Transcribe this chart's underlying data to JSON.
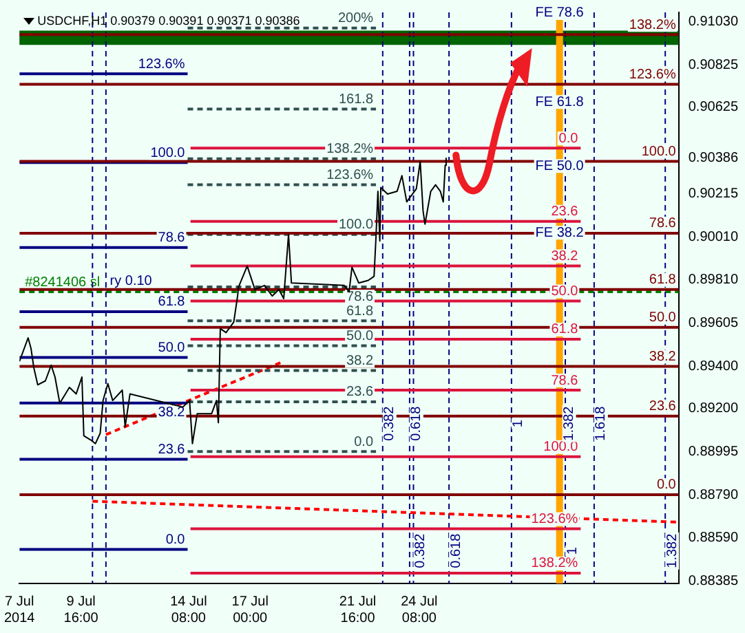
{
  "chart_data": {
    "type": "line",
    "title": "USDCHF,H1 0.90379 0.90391 0.90371 0.90386",
    "marker": "none",
    "legend": false,
    "grid": false,
    "xlim": [
      "2014-07-07T00:00",
      "2014-08-04T14:00"
    ],
    "xticks": [
      {
        "value": "2014-07-07T00:00",
        "label": "7 Jul 2014"
      },
      {
        "value": "2014-07-09T16:00",
        "label": "9 Jul 16:00"
      },
      {
        "value": "2014-07-14T08:00",
        "label": "14 Jul 08:00"
      },
      {
        "value": "2014-07-17T00:00",
        "label": "17 Jul 00:00"
      },
      {
        "value": "2014-07-21T16:00",
        "label": "21 Jul 16:00"
      },
      {
        "value": "2014-07-24T08:00",
        "label": "24 Jul 08:00"
      }
    ],
    "ylim": [
      0.88373,
      0.91073
    ],
    "yticks": [
      {
        "value": 0.9103,
        "label": "0.91030"
      },
      0.90825,
      0.90625,
      0.90386,
      0.90215,
      {
        "value": 0.9001,
        "label": "0.90010"
      },
      {
        "value": 0.8981,
        "label": "0.89810"
      },
      0.89605,
      {
        "value": 0.894,
        "label": "0.89400"
      },
      {
        "value": 0.892,
        "label": "0.89200"
      },
      0.88995,
      {
        "value": 0.8879,
        "label": "0.88790"
      },
      {
        "value": 0.8859,
        "label": "0.88590"
      },
      0.88385
    ],
    "series": [
      {
        "color": "#000000",
        "x": [
          "2014-07-07T00:00",
          "2014-07-07T09:00",
          "2014-07-07T12:00",
          "2014-07-07T15:00",
          "2014-07-07T19:00",
          "2014-07-08T03:00",
          "2014-07-08T09:00",
          "2014-07-08T13:00",
          "2014-07-08T18:00",
          "2014-07-09T04:00",
          "2014-07-09T11:00",
          "2014-07-09T17:00",
          "2014-07-09T19:00",
          "2014-07-10T02:00",
          "2014-07-10T07:00",
          "2014-07-10T12:00",
          "2014-07-10T15:00",
          "2014-07-10T20:00",
          "2014-07-11T01:00",
          "2014-07-11T11:00",
          "2014-07-11T14:00",
          "2014-07-11T19:00",
          "2014-07-14T02:00",
          "2014-07-14T09:00",
          "2014-07-14T12:00",
          "2014-07-14T17:00",
          "2014-07-14T22:00",
          "2014-07-15T08:00",
          "2014-07-15T13:00",
          "2014-07-15T15:00",
          "2014-07-15T17:00",
          "2014-07-15T23:00",
          "2014-07-16T07:00",
          "2014-07-16T11:00",
          "2014-07-16T12:00",
          "2014-07-16T21:00",
          "2014-07-17T05:00",
          "2014-07-17T15:00",
          "2014-07-17T23:00",
          "2014-07-18T06:00",
          "2014-07-18T11:00",
          "2014-07-18T16:00",
          "2014-07-18T19:00",
          "2014-07-21T02:00",
          "2014-07-21T07:00",
          "2014-07-21T10:00",
          "2014-07-21T17:00",
          "2014-07-22T03:00",
          "2014-07-22T09:00",
          "2014-07-22T11:00",
          "2014-07-22T13:00",
          "2014-07-22T15:00",
          "2014-07-22T16:00",
          "2014-07-22T23:00",
          "2014-07-23T09:00",
          "2014-07-23T14:00",
          "2014-07-23T19:00",
          "2014-07-24T05:00",
          "2014-07-24T09:00",
          "2014-07-24T12:00",
          "2014-07-24T14:00",
          "2014-07-24T20:00",
          "2014-07-25T01:00",
          "2014-07-25T06:00",
          "2014-07-25T09:00",
          "2014-07-25T11:00",
          "2014-07-25T12:00"
        ],
        "values": [
          0.89423,
          0.89534,
          0.89485,
          0.89392,
          0.89312,
          0.89331,
          0.89405,
          0.89349,
          0.89225,
          0.893,
          0.89269,
          0.89349,
          0.89071,
          0.89052,
          0.89034,
          0.89083,
          0.89238,
          0.89318,
          0.89238,
          0.89287,
          0.89114,
          0.89269,
          0.89207,
          0.89238,
          0.89034,
          0.89176,
          0.89176,
          0.89176,
          0.89238,
          0.89133,
          0.89578,
          0.89559,
          0.89609,
          0.89732,
          0.89775,
          0.89874,
          0.89763,
          0.89782,
          0.89732,
          0.89763,
          0.8972,
          0.90023,
          0.89794,
          0.89782,
          0.89751,
          0.89868,
          0.89794,
          0.89806,
          0.89825,
          0.9001,
          0.90227,
          0.89992,
          0.90245,
          0.90214,
          0.90227,
          0.90301,
          0.90177,
          0.90239,
          0.90369,
          0.90134,
          0.90072,
          0.90227,
          0.90258,
          0.90227,
          0.90177,
          0.9035,
          0.90386
        ]
      },
      {
        "color": "#800000",
        "x": [
          "2014-07-07T00:00",
          "2014-08-04T14:00"
        ],
        "values": [
          0.90968,
          0.90968
        ]
      },
      {
        "color": "#800000",
        "x": [
          "2014-07-07T00:00",
          "2014-08-04T14:00"
        ],
        "values": [
          0.90733,
          0.90733
        ]
      },
      {
        "color": "#800000",
        "x": [
          "2014-07-07T00:00",
          "2014-08-04T14:00"
        ],
        "values": [
          0.90369,
          0.90369
        ]
      },
      {
        "color": "#800000",
        "x": [
          "2014-07-07T00:00",
          "2014-08-04T14:00"
        ],
        "values": [
          0.90029,
          0.90029
        ]
      },
      {
        "color": "#800000",
        "x": [
          "2014-07-07T00:00",
          "2014-08-04T14:00"
        ],
        "values": [
          0.89763,
          0.89763
        ]
      },
      {
        "color": "#800000",
        "x": [
          "2014-07-07T00:00",
          "2014-08-04T14:00"
        ],
        "values": [
          0.89584,
          0.89584
        ]
      },
      {
        "color": "#800000",
        "x": [
          "2014-07-07T00:00",
          "2014-08-04T14:00"
        ],
        "values": [
          0.89399,
          0.89399
        ]
      },
      {
        "color": "#800000",
        "x": [
          "2014-07-07T00:00",
          "2014-08-04T14:00"
        ],
        "values": [
          0.89164,
          0.89164
        ]
      },
      {
        "color": "#800000",
        "x": [
          "2014-07-07T00:00",
          "2014-08-04T14:00"
        ],
        "values": [
          0.88793,
          0.88793
        ]
      },
      {
        "color": "#dc143c",
        "x": [
          "2014-07-14T10:00",
          "2014-07-31T08:00"
        ],
        "values": [
          0.90431,
          0.90431
        ]
      },
      {
        "color": "#dc143c",
        "x": [
          "2014-07-14T10:00",
          "2014-07-31T08:00"
        ],
        "values": [
          0.90085,
          0.90085
        ]
      },
      {
        "color": "#dc143c",
        "x": [
          "2014-07-14T10:00",
          "2014-07-31T08:00"
        ],
        "values": [
          0.89874,
          0.89874
        ]
      },
      {
        "color": "#dc143c",
        "x": [
          "2014-07-14T10:00",
          "2014-07-31T08:00"
        ],
        "values": [
          0.89708,
          0.89708
        ]
      },
      {
        "color": "#dc143c",
        "x": [
          "2014-07-14T10:00",
          "2014-07-31T08:00"
        ],
        "values": [
          0.89528,
          0.89528
        ]
      },
      {
        "color": "#dc143c",
        "x": [
          "2014-07-14T10:00",
          "2014-07-31T08:00"
        ],
        "values": [
          0.89287,
          0.89287
        ]
      },
      {
        "color": "#dc143c",
        "x": [
          "2014-07-14T10:00",
          "2014-07-31T08:00"
        ],
        "values": [
          0.88972,
          0.88972
        ]
      },
      {
        "color": "#dc143c",
        "x": [
          "2014-07-14T10:00",
          "2014-07-31T08:00"
        ],
        "values": [
          0.88632,
          0.88632
        ]
      },
      {
        "color": "#dc143c",
        "x": [
          "2014-07-14T10:00",
          "2014-07-31T08:00"
        ],
        "values": [
          0.88422,
          0.88422
        ]
      },
      {
        "color": "#000080",
        "x": [
          "2014-07-07T00:00",
          "2014-07-14T07:00"
        ],
        "values": [
          0.90783,
          0.90783
        ]
      },
      {
        "color": "#000080",
        "x": [
          "2014-07-07T00:00",
          "2014-07-14T07:00"
        ],
        "values": [
          0.90363,
          0.90363
        ]
      },
      {
        "color": "#000080",
        "x": [
          "2014-07-07T00:00",
          "2014-07-14T07:00"
        ],
        "values": [
          0.89961,
          0.89961
        ]
      },
      {
        "color": "#000080",
        "x": [
          "2014-07-07T00:00",
          "2014-07-14T07:00"
        ],
        "values": [
          0.89658,
          0.89658
        ]
      },
      {
        "color": "#000080",
        "x": [
          "2014-07-07T00:00",
          "2014-07-14T07:00"
        ],
        "values": [
          0.89442,
          0.89442
        ]
      },
      {
        "color": "#000080",
        "x": [
          "2014-07-07T00:00",
          "2014-07-14T07:00"
        ],
        "values": [
          0.89226,
          0.89226
        ]
      },
      {
        "color": "#000080",
        "x": [
          "2014-07-07T00:00",
          "2014-07-14T07:00"
        ],
        "values": [
          0.8896,
          0.8896
        ]
      },
      {
        "color": "#000080",
        "x": [
          "2014-07-07T00:00",
          "2014-07-14T07:00"
        ],
        "values": [
          0.88534,
          0.88534
        ]
      },
      {
        "color": "#2f4f4f",
        "line_style": "dashed",
        "x": [
          "2014-07-14T07:00",
          "2014-07-22T11:00"
        ],
        "values": [
          0.90999,
          0.90999
        ]
      },
      {
        "color": "#2f4f4f",
        "line_style": "dashed",
        "x": [
          "2014-07-14T07:00",
          "2014-07-22T11:00"
        ],
        "values": [
          0.90616,
          0.90616
        ]
      },
      {
        "color": "#2f4f4f",
        "line_style": "dashed",
        "x": [
          "2014-07-14T07:00",
          "2014-07-22T11:00"
        ],
        "values": [
          0.90381,
          0.90381
        ]
      },
      {
        "color": "#2f4f4f",
        "line_style": "dashed",
        "x": [
          "2014-07-14T07:00",
          "2014-07-22T11:00"
        ],
        "values": [
          0.90258,
          0.90258
        ]
      },
      {
        "color": "#2f4f4f",
        "line_style": "dashed",
        "x": [
          "2014-07-14T07:00",
          "2014-07-22T11:00"
        ],
        "values": [
          0.90023,
          0.90023
        ]
      },
      {
        "color": "#2f4f4f",
        "line_style": "dashed",
        "x": [
          "2014-07-14T07:00",
          "2014-07-22T11:00"
        ],
        "values": [
          0.89775,
          0.89775
        ]
      },
      {
        "color": "#2f4f4f",
        "line_style": "dashed",
        "x": [
          "2014-07-14T07:00",
          "2014-07-22T11:00"
        ],
        "values": [
          0.89615,
          0.89615
        ]
      },
      {
        "color": "#2f4f4f",
        "line_style": "dashed",
        "x": [
          "2014-07-14T07:00",
          "2014-07-22T11:00"
        ],
        "values": [
          0.89497,
          0.89497
        ]
      },
      {
        "color": "#2f4f4f",
        "line_style": "dashed",
        "x": [
          "2014-07-14T07:00",
          "2014-07-22T11:00"
        ],
        "values": [
          0.8938,
          0.8938
        ]
      },
      {
        "color": "#2f4f4f",
        "line_style": "dashed",
        "x": [
          "2014-07-14T07:00",
          "2014-07-22T11:00"
        ],
        "values": [
          0.89232,
          0.89232
        ]
      },
      {
        "color": "#2f4f4f",
        "line_style": "dashed",
        "x": [
          "2014-07-14T07:00",
          "2014-07-22T11:00"
        ],
        "values": [
          0.88997,
          0.88997
        ]
      },
      {
        "color": "#ff0000",
        "line_style": "dashed",
        "x": [
          "2014-07-10T18:00",
          "2014-07-18T11:00"
        ],
        "values": [
          0.89077,
          0.89423
        ]
      },
      {
        "color": "#ff0000",
        "line_style": "dashed",
        "x": [
          "2014-07-10T04:00",
          "2014-08-04T14:00"
        ],
        "values": [
          0.88762,
          0.88663
        ]
      }
    ],
    "bands": [
      {
        "axis": "y",
        "from": 0.90919,
        "to": 0.90987,
        "color": "#006400"
      }
    ],
    "ref_lines": [
      {
        "axis": "y",
        "value": 0.89752,
        "label": "#8241406 sl",
        "color": "#008000",
        "line_style": "dashed"
      },
      {
        "axis": "x",
        "value": "2014-07-10T04:00",
        "color": "#000080",
        "line_style": "dashed"
      },
      {
        "axis": "x",
        "value": "2014-07-10T18:00",
        "color": "#000080",
        "line_style": "dashed"
      },
      {
        "axis": "x",
        "value": "2014-07-22T18:00",
        "label": "0.382",
        "color": "#000080",
        "line_style": "dashed"
      },
      {
        "axis": "x",
        "value": "2014-07-23T22:00",
        "label": "0.618",
        "color": "#000080",
        "line_style": "dashed"
      },
      {
        "axis": "x",
        "value": "2014-07-28T08:00",
        "label": "1",
        "color": "#000080",
        "line_style": "dashed"
      },
      {
        "axis": "x",
        "value": "2014-07-30T10:00",
        "label": "1.382",
        "color": "#ffa500"
      },
      {
        "axis": "x",
        "value": "2014-07-31T22:00",
        "label": "1.618",
        "color": "#000080",
        "line_style": "dashed"
      },
      {
        "axis": "x",
        "value": "2014-07-24T02:00",
        "label": "0.382",
        "color": "#000080",
        "line_style": "dashed"
      },
      {
        "axis": "x",
        "value": "2014-07-25T15:00",
        "label": "0.618",
        "color": "#000080",
        "line_style": "dashed"
      },
      {
        "axis": "x",
        "value": "2014-07-30T16:00",
        "label": "1",
        "color": "#000080",
        "line_style": "dashed"
      },
      {
        "axis": "x",
        "value": "2014-08-04T00:00",
        "label": "1.382",
        "color": "#000080",
        "line_style": "dashed"
      }
    ],
    "annotations": [
      {
        "text": "138.2%",
        "x": "2014-08-04T14:00",
        "y": 0.90968
      },
      {
        "text": "123.6%",
        "x": "2014-08-04T14:00",
        "y": 0.90733
      },
      {
        "text": "100.0",
        "x": "2014-08-04T14:00",
        "y": 0.90369
      },
      {
        "text": "78.6",
        "x": "2014-08-04T14:00",
        "y": 0.90029
      },
      {
        "text": "61.8",
        "x": "2014-08-04T14:00",
        "y": 0.89763
      },
      {
        "text": "50.0",
        "x": "2014-08-04T14:00",
        "y": 0.89584
      },
      {
        "text": "38.2",
        "x": "2014-08-04T14:00",
        "y": 0.89399
      },
      {
        "text": "23.6",
        "x": "2014-08-04T14:00",
        "y": 0.89164
      },
      {
        "text": "0.0",
        "x": "2014-08-04T14:00",
        "y": 0.88793
      },
      {
        "text": "0.0",
        "x": "2014-07-31T08:00",
        "y": 0.90431
      },
      {
        "text": "23.6",
        "x": "2014-07-31T08:00",
        "y": 0.90085
      },
      {
        "text": "38.2",
        "x": "2014-07-31T08:00",
        "y": 0.89874
      },
      {
        "text": "50.0",
        "x": "2014-07-31T08:00",
        "y": 0.89708
      },
      {
        "text": "61.8",
        "x": "2014-07-31T08:00",
        "y": 0.89528
      },
      {
        "text": "78.6",
        "x": "2014-07-31T08:00",
        "y": 0.89287
      },
      {
        "text": "100.0",
        "x": "2014-07-31T08:00",
        "y": 0.88972
      },
      {
        "text": "123.6%",
        "x": "2014-07-31T08:00",
        "y": 0.88632
      },
      {
        "text": "138.2%",
        "x": "2014-07-31T08:00",
        "y": 0.88422
      },
      {
        "text": "123.6%",
        "x": "2014-07-14T07:00",
        "y": 0.90783
      },
      {
        "text": "100.0",
        "x": "2014-07-14T07:00",
        "y": 0.90363
      },
      {
        "text": "78.6",
        "x": "2014-07-14T07:00",
        "y": 0.89961
      },
      {
        "text": "61.8",
        "x": "2014-07-14T07:00",
        "y": 0.89658
      },
      {
        "text": "50.0",
        "x": "2014-07-14T07:00",
        "y": 0.89442
      },
      {
        "text": "38.2",
        "x": "2014-07-14T07:00",
        "y": 0.89226
      },
      {
        "text": "23.6",
        "x": "2014-07-14T07:00",
        "y": 0.8896
      },
      {
        "text": "0.0",
        "x": "2014-07-14T07:00",
        "y": 0.88534
      },
      {
        "text": "200%",
        "x": "2014-07-22T11:00",
        "y": 0.90999
      },
      {
        "text": "161.8",
        "x": "2014-07-22T11:00",
        "y": 0.90616
      },
      {
        "text": "138.2%",
        "x": "2014-07-22T11:00",
        "y": 0.90381
      },
      {
        "text": "123.6%",
        "x": "2014-07-22T11:00",
        "y": 0.90258
      },
      {
        "text": "100.0",
        "x": "2014-07-22T11:00",
        "y": 0.90023
      },
      {
        "text": "78.6",
        "x": "2014-07-22T11:00",
        "y": 0.89775
      },
      {
        "text": "61.8",
        "x": "2014-07-22T11:00",
        "y": 0.89615
      },
      {
        "text": "50.0",
        "x": "2014-07-22T11:00",
        "y": 0.89497
      },
      {
        "text": "38.2",
        "x": "2014-07-22T11:00",
        "y": 0.8938
      },
      {
        "text": "23.6",
        "x": "2014-07-22T11:00",
        "y": 0.89232
      },
      {
        "text": "0.0",
        "x": "2014-07-22T11:00",
        "y": 0.88997
      },
      {
        "text": "FE 78.6",
        "x": "2014-07-30T10:00",
        "y": 0.91018
      },
      {
        "text": "FE 61.8",
        "x": "2014-07-30T10:00",
        "y": 0.90597
      },
      {
        "text": "FE 50.0",
        "x": "2014-07-30T10:00",
        "y": 0.90295
      },
      {
        "text": "FE 38.2",
        "x": "2014-07-30T10:00",
        "y": 0.89979
      },
      {
        "text": "ry 0.10",
        "x": "2014-07-11T20:00",
        "y": 0.89752
      }
    ]
  }
}
